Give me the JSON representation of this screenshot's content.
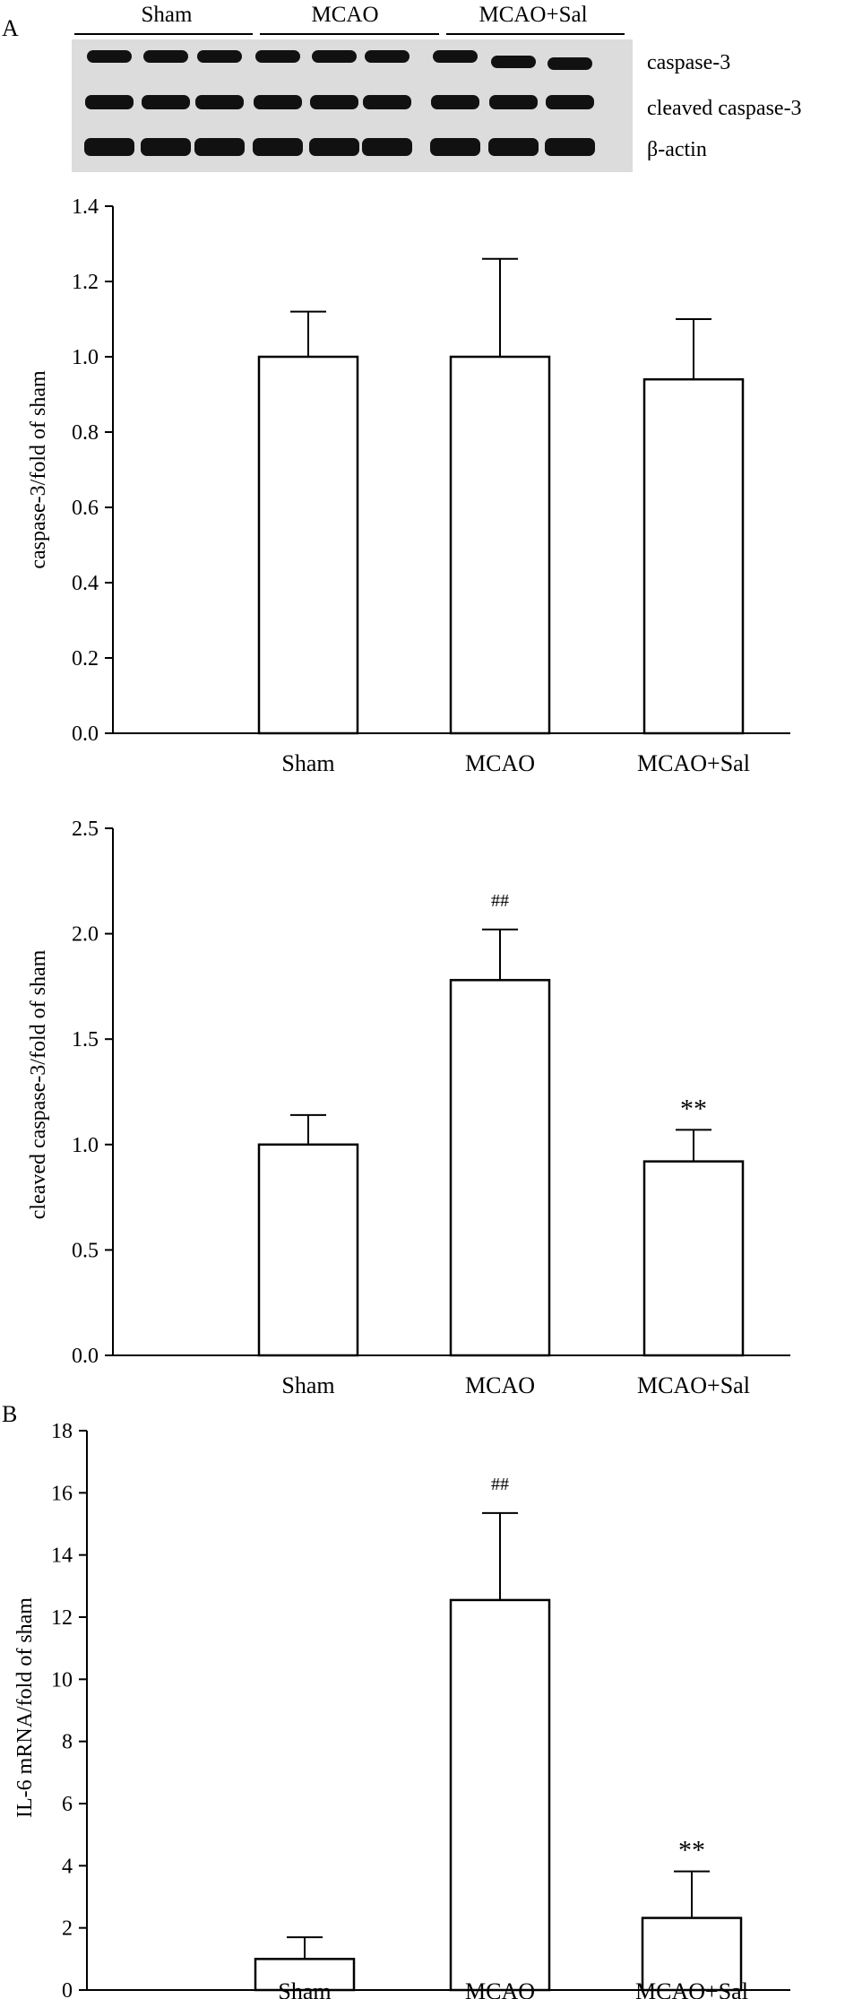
{
  "panel_labels": {
    "a": "A",
    "b": "B"
  },
  "blot": {
    "groups": [
      "Sham",
      "MCAO",
      "MCAO+Sal"
    ],
    "bands": [
      "caspase-3",
      "cleaved caspase-3",
      "β-actin"
    ],
    "lanes_per_group": 3
  },
  "chart_data": [
    {
      "type": "bar",
      "title": "",
      "xlabel": "",
      "ylabel": "caspase-3/fold of sham",
      "categories": [
        "Sham",
        "MCAO",
        "MCAO+Sal"
      ],
      "values": [
        1.0,
        1.0,
        0.94
      ],
      "errors": [
        0.12,
        0.26,
        0.16
      ],
      "annotations": [
        "",
        "",
        ""
      ],
      "ylim": [
        0,
        1.4
      ],
      "yticks": [
        "0.0",
        "0.2",
        "0.4",
        "0.6",
        "0.8",
        "1.0",
        "1.2",
        "1.4"
      ]
    },
    {
      "type": "bar",
      "title": "",
      "xlabel": "",
      "ylabel": "cleaved caspase-3/fold of sham",
      "categories": [
        "Sham",
        "MCAO",
        "MCAO+Sal"
      ],
      "values": [
        1.0,
        1.78,
        0.92
      ],
      "errors": [
        0.14,
        0.24,
        0.15
      ],
      "annotations": [
        "",
        "##",
        "**"
      ],
      "ylim": [
        0,
        2.5
      ],
      "yticks": [
        "0.0",
        "0.5",
        "1.0",
        "1.5",
        "2.0",
        "2.5"
      ]
    },
    {
      "type": "bar",
      "title": "",
      "xlabel": "",
      "ylabel": "IL-6 mRNA/fold of sham",
      "categories": [
        "Sham",
        "MCAO",
        "MCAO+Sal"
      ],
      "values": [
        1.0,
        12.55,
        2.32
      ],
      "errors": [
        0.7,
        2.8,
        1.5
      ],
      "annotations": [
        "",
        "##",
        "**"
      ],
      "ylim": [
        0,
        18
      ],
      "yticks": [
        "0",
        "2",
        "4",
        "6",
        "8",
        "10",
        "12",
        "14",
        "16",
        "18"
      ]
    }
  ]
}
